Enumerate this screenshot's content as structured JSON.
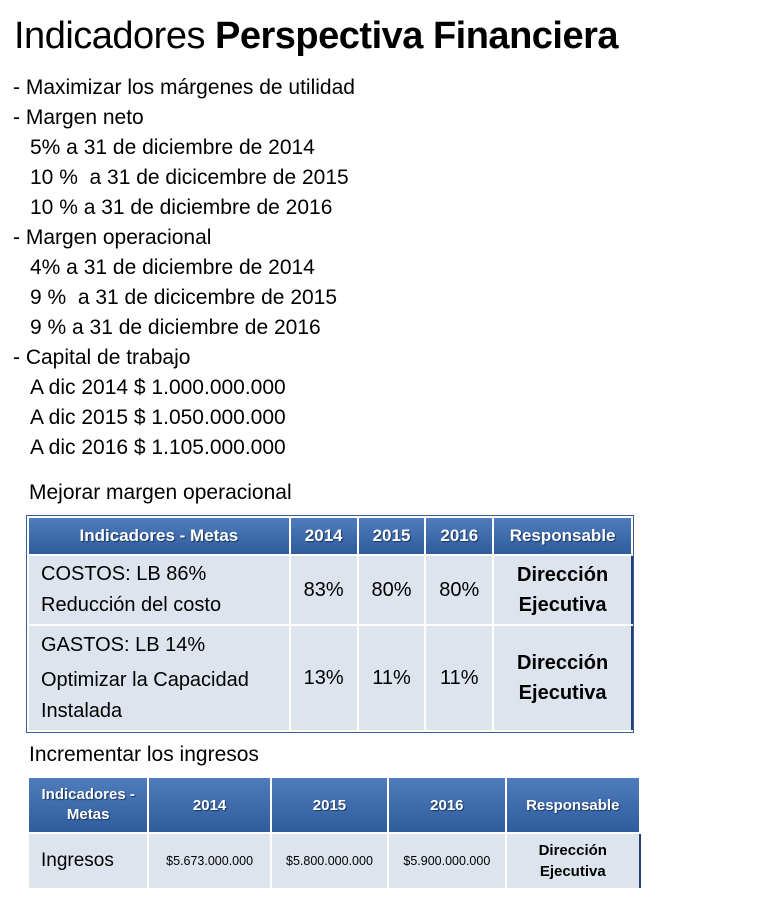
{
  "title": {
    "regular": "Indicadores",
    "bold": "Perspectiva Financiera"
  },
  "bullets": [
    {
      "text": "- Maximizar los márgenes de utilidad",
      "indent": false
    },
    {
      "text": "- Margen neto",
      "indent": false
    },
    {
      "text": "5% a 31 de diciembre de 2014",
      "indent": true
    },
    {
      "text": "10 %  a 31 de dicicembre de 2015",
      "indent": true
    },
    {
      "text": "10 % a 31 de diciembre de 2016",
      "indent": true
    },
    {
      "text": "- Margen operacional",
      "indent": false
    },
    {
      "text": "4% a 31 de diciembre de 2014",
      "indent": true
    },
    {
      "text": "9 %  a 31 de dicicembre de 2015",
      "indent": true
    },
    {
      "text": "9 % a 31 de diciembre de 2016",
      "indent": true
    },
    {
      "text": "- Capital de trabajo",
      "indent": false
    },
    {
      "text": "A dic 2014 $ 1.000.000.000",
      "indent": true
    },
    {
      "text": "A dic 2015 $ 1.050.000.000",
      "indent": true
    },
    {
      "text": "A dic 2016 $ 1.105.000.000",
      "indent": true
    }
  ],
  "section1": {
    "title": "Mejorar margen operacional",
    "headers": [
      "Indicadores -  Metas",
      "2014",
      "2015",
      "2016",
      "Responsable"
    ],
    "rows": [
      {
        "indicator": [
          "COSTOS: LB 86%",
          "Reducción del costo"
        ],
        "y2014": "83%",
        "y2015": "80%",
        "y2016": "80%",
        "responsable": [
          "Dirección",
          "Ejecutiva"
        ]
      },
      {
        "indicator": [
          "GASTOS: LB 14%",
          "Optimizar la Capacidad",
          "Instalada"
        ],
        "y2014": "13%",
        "y2015": "11%",
        "y2016": "11%",
        "responsable": [
          "Dirección",
          "Ejecutiva"
        ]
      }
    ]
  },
  "section2": {
    "title": "Incrementar los ingresos",
    "headers": [
      [
        "Indicadores -",
        "Metas"
      ],
      "2014",
      "2015",
      "2016",
      "Responsable"
    ],
    "rows": [
      {
        "indicator": "Ingresos",
        "y2014": "$5.673.000.000",
        "y2015": "$5.800.000.000",
        "y2016": "$5.900.000.000",
        "responsable": [
          "Dirección",
          "Ejecutiva"
        ]
      }
    ]
  }
}
